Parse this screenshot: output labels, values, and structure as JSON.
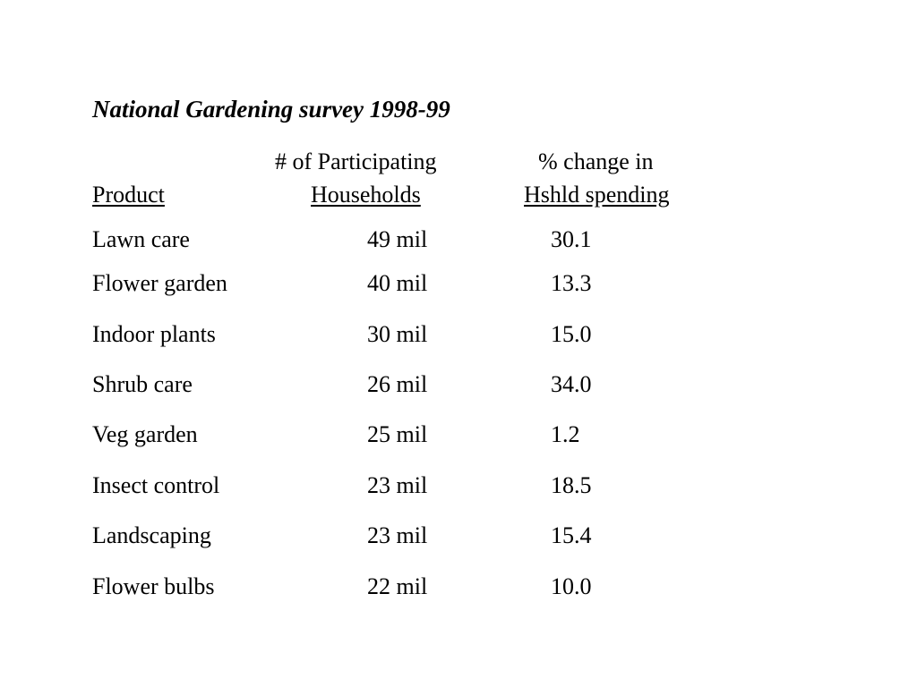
{
  "title": "National Gardening survey 1998-99",
  "headers": {
    "product": "Product",
    "households_line1": "# of Participating",
    "households_line2": "Households",
    "spending_line1": "% change in",
    "spending_line2": "Hshld spending"
  },
  "rows": [
    {
      "product": "Lawn care",
      "households": "49 mil",
      "change": "30.1"
    },
    {
      "product": "Flower garden",
      "households": "40 mil",
      "change": "13.3"
    },
    {
      "product": "Indoor plants",
      "households": "30 mil",
      "change": "15.0"
    },
    {
      "product": "Shrub care",
      "households": "26 mil",
      "change": "34.0"
    },
    {
      "product": "Veg garden",
      "households": "25 mil",
      "change": "1.2"
    },
    {
      "product": "Insect control",
      "households": "23 mil",
      "change": "18.5"
    },
    {
      "product": "Landscaping",
      "households": "23 mil",
      "change": "15.4"
    },
    {
      "product": "Flower bulbs",
      "households": "22 mil",
      "change": "10.0"
    }
  ]
}
